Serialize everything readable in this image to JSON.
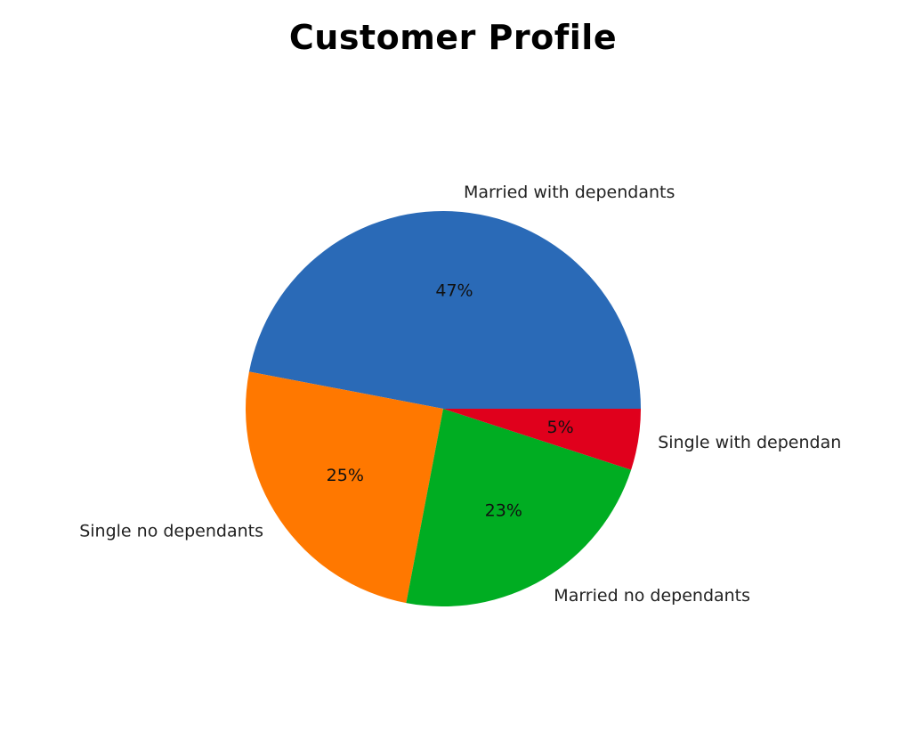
{
  "chart_data": {
    "type": "pie",
    "title": "Customer Profile",
    "slices": [
      {
        "label": "Married with dependants",
        "value": 47,
        "pct_label": "47%",
        "color": "#2a6ab7"
      },
      {
        "label": "Single no dependants",
        "value": 25,
        "pct_label": "25%",
        "color": "#ff7800"
      },
      {
        "label": "Married no dependants",
        "value": 23,
        "pct_label": "23%",
        "color": "#00ad22"
      },
      {
        "label": "Single with dependan",
        "value": 5,
        "pct_label": "5%",
        "color": "#e0001c"
      }
    ],
    "start_angle_deg": 0,
    "direction": "counterclockwise",
    "legend": "none"
  }
}
